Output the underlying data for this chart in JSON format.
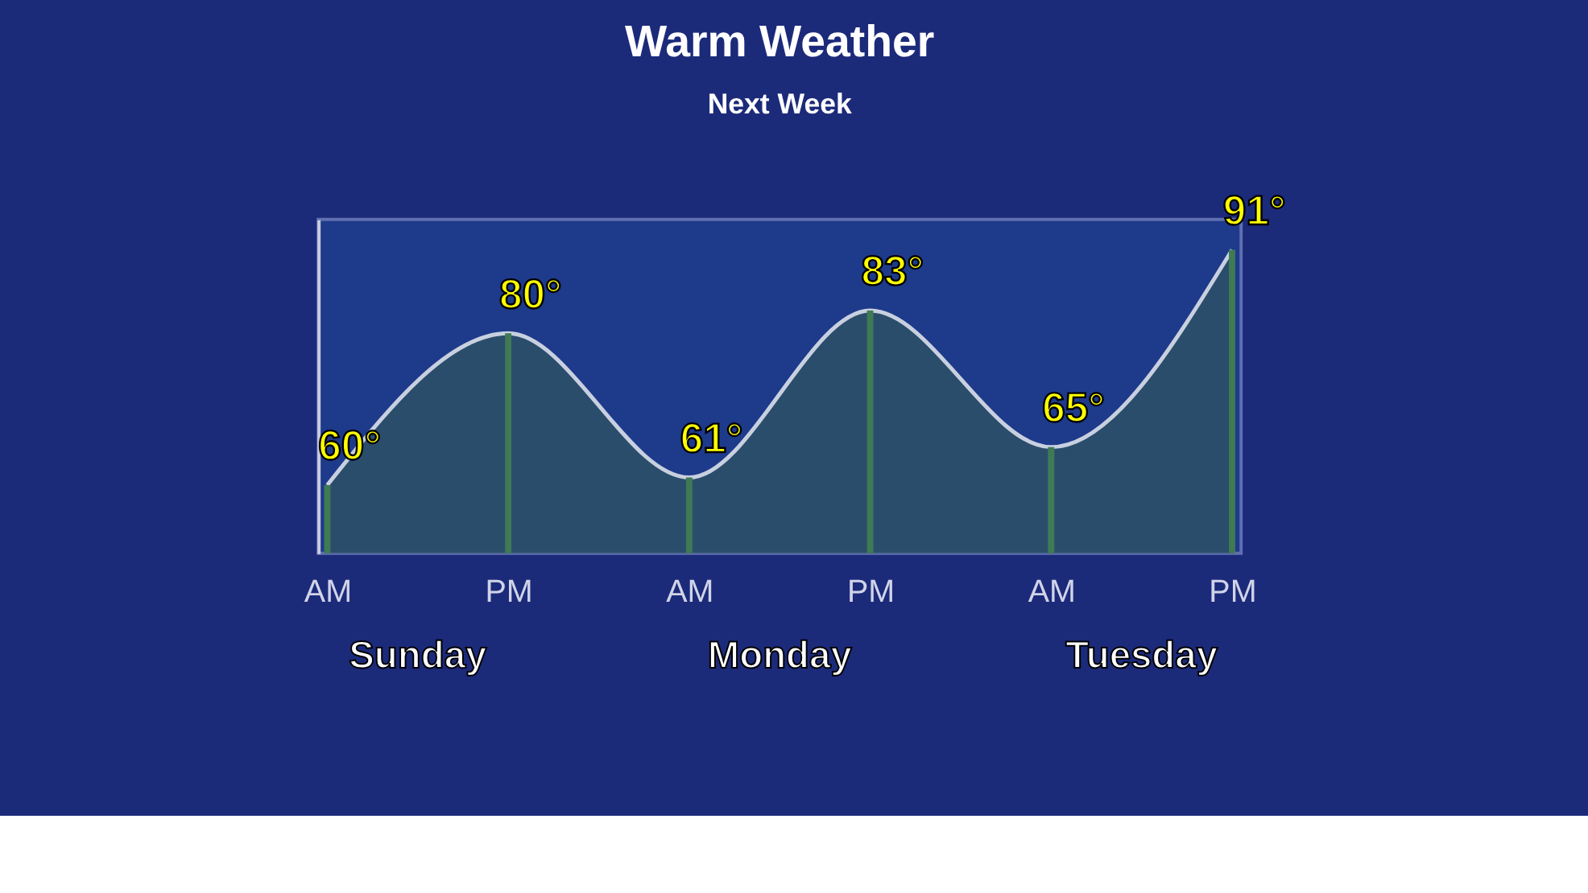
{
  "chart_data": {
    "type": "area",
    "title": "Warm Weather",
    "subtitle": "Next Week",
    "categories": [
      "AM",
      "PM",
      "AM",
      "PM",
      "AM",
      "PM"
    ],
    "values": [
      60,
      80,
      61,
      83,
      65,
      91
    ],
    "value_labels": [
      "60°",
      "80°",
      "61°",
      "83°",
      "65°",
      "91°"
    ],
    "color": "#2c5068",
    "ylim": [
      51,
      95
    ],
    "tick_labels": "x",
    "annotations": [
      "Sunday",
      "Monday",
      "Tuesday"
    ]
  }
}
